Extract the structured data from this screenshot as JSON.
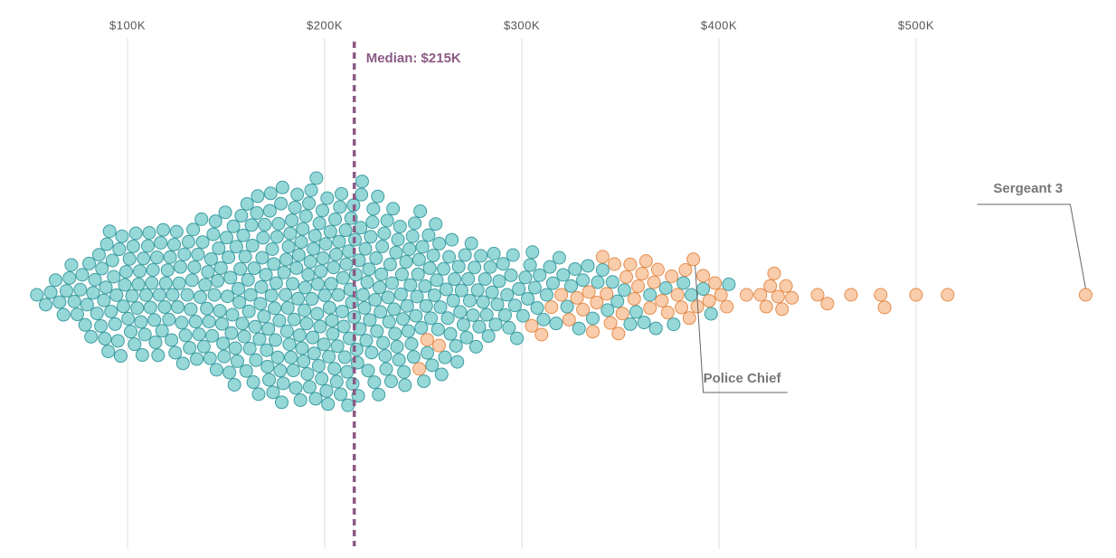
{
  "chart_data": {
    "type": "beeswarm",
    "xlim": [
      35300,
      601400
    ],
    "xticks": [
      {
        "value": 100000,
        "label": "$100K"
      },
      {
        "value": 200000,
        "label": "$200K"
      },
      {
        "value": 300000,
        "label": "$300K"
      },
      {
        "value": 400000,
        "label": "$400K"
      },
      {
        "value": 500000,
        "label": "$500K"
      }
    ],
    "grid": true,
    "median": {
      "label": "Median: $215K",
      "value": 215000,
      "color": "#8b5a85"
    },
    "annotations": [
      {
        "text": "Sergeant 3",
        "value": 586000
      },
      {
        "text": "Police Chief",
        "value": 387000
      }
    ],
    "series": [
      {
        "color": "#84d0d1",
        "edgecolor": "#3e9ea2",
        "values": [
          54000,
          58500,
          61000,
          63500,
          65500,
          67500,
          69000,
          70500,
          71500,
          73000,
          74500,
          76000,
          77000,
          78500,
          79500,
          80500,
          81500,
          82500,
          83500,
          84500,
          85500,
          86500,
          87000,
          88000,
          88500,
          89000,
          89500,
          90200,
          90900,
          91600,
          92300,
          93000,
          93700,
          94400,
          95100,
          95800,
          96500,
          97200,
          97900,
          98600,
          99300,
          100300,
          101000,
          101600,
          102300,
          102900,
          103600,
          104200,
          104900,
          105500,
          106200,
          106800,
          107500,
          108100,
          108800,
          109400,
          110300,
          111000,
          111600,
          112300,
          112900,
          113600,
          114200,
          114900,
          115500,
          116200,
          116800,
          117500,
          118100,
          118800,
          119400,
          120300,
          121000,
          121600,
          122300,
          122900,
          123600,
          124200,
          124900,
          125500,
          126200,
          126800,
          127500,
          128100,
          128800,
          129400,
          130300,
          130900,
          131500,
          132100,
          132700,
          133300,
          133900,
          134500,
          135100,
          135700,
          136300,
          136900,
          137500,
          138100,
          138700,
          139300,
          140200,
          140750,
          141300,
          141850,
          142400,
          142950,
          143500,
          144050,
          144600,
          145150,
          145700,
          146250,
          146800,
          147350,
          147900,
          148450,
          149000,
          149550,
          150200,
          150700,
          151200,
          151700,
          152200,
          152700,
          153200,
          153700,
          154200,
          154700,
          155200,
          155700,
          156200,
          156700,
          157200,
          157700,
          158200,
          158700,
          159200,
          159700,
          160200,
          160650,
          161100,
          161550,
          162000,
          162450,
          162900,
          163350,
          163800,
          164250,
          164700,
          165150,
          165600,
          166050,
          166500,
          166950,
          167400,
          167850,
          168300,
          168750,
          169200,
          169650,
          170200,
          170600,
          171000,
          171400,
          171800,
          172200,
          172600,
          173000,
          173400,
          173800,
          174200,
          174600,
          175000,
          175400,
          175800,
          176200,
          176600,
          177000,
          177400,
          177800,
          178200,
          178600,
          179000,
          179400,
          180100,
          180500,
          180900,
          181300,
          181700,
          182100,
          182500,
          182900,
          183300,
          183700,
          184100,
          184500,
          184900,
          185300,
          185700,
          186100,
          186500,
          186900,
          187300,
          187700,
          188100,
          188500,
          188900,
          189300,
          189700,
          190100,
          190480,
          190860,
          191240,
          191620,
          192000,
          192380,
          192760,
          193140,
          193520,
          193900,
          194280,
          194660,
          195040,
          195420,
          195800,
          196180,
          196560,
          196940,
          197320,
          197700,
          198080,
          198460,
          198840,
          199220,
          199600,
          200100,
          200500,
          200900,
          201300,
          201700,
          202100,
          202500,
          202900,
          203300,
          203700,
          204100,
          204500,
          204900,
          205300,
          205700,
          206100,
          206500,
          206900,
          207300,
          207700,
          208100,
          208500,
          208900,
          209300,
          209700,
          210200,
          210600,
          211000,
          211400,
          211800,
          212200,
          212600,
          213000,
          213400,
          213800,
          214200,
          214600,
          215000,
          215400,
          215800,
          216200,
          216600,
          217000,
          217400,
          217800,
          218200,
          218600,
          219000,
          219400,
          220200,
          220650,
          221100,
          221550,
          222000,
          222450,
          222900,
          223350,
          223800,
          224250,
          224700,
          225150,
          225600,
          226050,
          226500,
          226950,
          227400,
          227850,
          228300,
          228750,
          229200,
          229650,
          230200,
          230700,
          231200,
          231700,
          232200,
          232700,
          233200,
          233700,
          234200,
          234700,
          235200,
          235700,
          236200,
          236700,
          237200,
          237700,
          238200,
          238700,
          239200,
          239700,
          240200,
          240750,
          241300,
          241850,
          242400,
          242950,
          243500,
          244050,
          244600,
          245150,
          245700,
          246250,
          246800,
          247350,
          247900,
          248450,
          249000,
          249550,
          250300,
          250900,
          251500,
          252100,
          252700,
          253300,
          253900,
          254500,
          255100,
          255700,
          256300,
          256900,
          257500,
          258100,
          258700,
          259300,
          260300,
          261000,
          261700,
          262400,
          263100,
          263800,
          264500,
          265200,
          265900,
          266600,
          267300,
          268000,
          268700,
          269400,
          270400,
          271200,
          272000,
          272800,
          273600,
          274400,
          275200,
          276000,
          276800,
          277600,
          278400,
          279200,
          280400,
          281300,
          282200,
          283100,
          284000,
          284900,
          285800,
          286700,
          287600,
          288500,
          290500,
          291500,
          292500,
          293500,
          294500,
          295500,
          296500,
          297500,
          298500,
          300600,
          301800,
          303000,
          304200,
          305400,
          306600,
          307800,
          309000,
          311000,
          312600,
          314200,
          315800,
          317400,
          319000,
          321000,
          323000,
          325000,
          327000,
          329000,
          331000,
          333500,
          336000,
          338500,
          341000,
          343500,
          346000,
          348500,
          352000,
          355000,
          358000,
          362000,
          365000,
          368000,
          373000,
          377000,
          382000,
          386000,
          392000,
          396000,
          405000
        ]
      },
      {
        "color": "#f8c49e",
        "edgecolor": "#e58c4c",
        "values": [
          248000,
          252000,
          258000,
          305000,
          310000,
          315000,
          320000,
          324000,
          328000,
          331000,
          334000,
          336000,
          338000,
          341000,
          343000,
          345000,
          347000,
          349000,
          351000,
          353000,
          355000,
          357000,
          359000,
          361000,
          363000,
          365000,
          367000,
          369000,
          371000,
          374000,
          376000,
          379000,
          381000,
          383000,
          385000,
          387000,
          389000,
          392000,
          395000,
          398000,
          401000,
          404000,
          414000,
          421000,
          424000,
          426000,
          428000,
          430000,
          432000,
          434000,
          437000,
          450000,
          455000,
          467000,
          482000,
          484000,
          500000,
          516000,
          586000
        ]
      }
    ]
  }
}
